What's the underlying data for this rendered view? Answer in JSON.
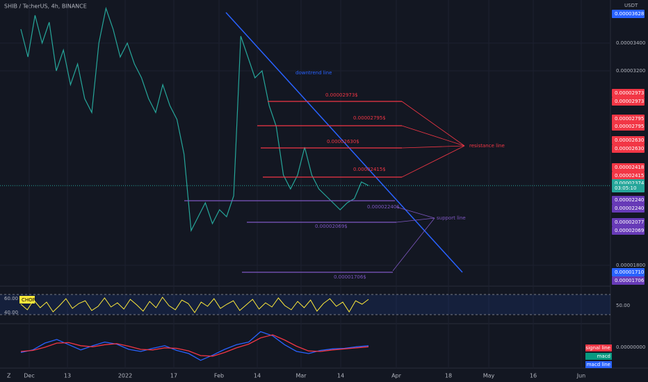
{
  "header": {
    "title": "SHIB / TetherUS, 4h, BINANCE",
    "currency": "USDT"
  },
  "price": {
    "ylim": [
      1.685e-05,
      3.71e-05
    ],
    "values": [
      3.5e-05,
      3.3e-05,
      3.6e-05,
      3.4e-05,
      3.55e-05,
      3.2e-05,
      3.35e-05,
      3.1e-05,
      3.25e-05,
      3e-05,
      2.9e-05,
      3.4e-05,
      3.65e-05,
      3.5e-05,
      3.3e-05,
      3.4e-05,
      3.25e-05,
      3.15e-05,
      3e-05,
      2.9e-05,
      3.1e-05,
      2.95e-05,
      2.85e-05,
      2.6e-05,
      2.05e-05,
      2.15e-05,
      2.25e-05,
      2.1e-05,
      2.2e-05,
      2.15e-05,
      2.3e-05,
      3.45e-05,
      3.3e-05,
      3.15e-05,
      3.2e-05,
      2.95e-05,
      2.8e-05,
      2.45e-05,
      2.35e-05,
      2.45e-05,
      2.65e-05,
      2.45e-05,
      2.35e-05,
      2.3e-05,
      2.25e-05,
      2.2e-05,
      2.25e-05,
      2.28e-05,
      2.4e-05,
      2.374e-05
    ],
    "color": "#26a69a"
  },
  "price_axis": {
    "ticks": [
      "0.00003400",
      "0.00003200",
      "0.00001800"
    ]
  },
  "price_tags": [
    {
      "text": "0.00003628",
      "color": "#2962ff"
    },
    {
      "text": "0.00002973",
      "color": "#f23645"
    },
    {
      "text": "0.00002973",
      "color": "#f23645"
    },
    {
      "text": "0.00002795",
      "color": "#f23645"
    },
    {
      "text": "0.00002795",
      "color": "#f23645"
    },
    {
      "text": "0.00002630",
      "color": "#f23645"
    },
    {
      "text": "0.00002630",
      "color": "#f23645"
    },
    {
      "text": "0.00002418",
      "color": "#f23645"
    },
    {
      "text": "0.00002415",
      "color": "#f23645"
    },
    {
      "text": "0.00002374",
      "color": "#26a69a"
    },
    {
      "text": "03:05:10",
      "color": "#26a69a"
    },
    {
      "text": "0.00002240",
      "color": "#673ab7"
    },
    {
      "text": "0.00002240",
      "color": "#673ab7"
    },
    {
      "text": "0.00002077",
      "color": "#673ab7"
    },
    {
      "text": "0.00002069",
      "color": "#673ab7"
    },
    {
      "text": "0.00001710",
      "color": "#2962ff"
    },
    {
      "text": "0.00001706",
      "color": "#673ab7"
    }
  ],
  "levels": [
    {
      "label": "0.00002973$",
      "color": "#f23645"
    },
    {
      "label": "0.00002795$",
      "color": "#f23645"
    },
    {
      "label": "0.00002630$",
      "color": "#f23645"
    },
    {
      "label": "0.00002415$",
      "color": "#f23645"
    },
    {
      "label": "0.00002240$",
      "color": "#7e57c2"
    },
    {
      "label": "0.00002069$",
      "color": "#7e57c2"
    },
    {
      "label": "0.00001706$",
      "color": "#7e57c2"
    }
  ],
  "annotations": {
    "downtrend": "downtrend line",
    "resistance": "resistance line",
    "support": "support line"
  },
  "chop": {
    "name": "CHOP",
    "ticks": [
      "60.00",
      "40.00"
    ],
    "right_label": "50.00",
    "ylim": [
      30,
      70
    ],
    "values": [
      52,
      44,
      58,
      47,
      55,
      41,
      50,
      60,
      46,
      53,
      57,
      43,
      49,
      61,
      48,
      54,
      45,
      59,
      51,
      42,
      56,
      47,
      62,
      50,
      44,
      58,
      53,
      40,
      55,
      49,
      60,
      46,
      52,
      57,
      43,
      51,
      59,
      45,
      54,
      48,
      61,
      50,
      44,
      56,
      47,
      58,
      42,
      53,
      60,
      49,
      55,
      41,
      57,
      52,
      59
    ]
  },
  "macd": {
    "zero_label": "0.00000000",
    "ylim": [
      -4e-07,
      4e-07
    ],
    "macd": [
      -1e-07,
      -5e-08,
      8e-08,
      1.5e-07,
      5e-08,
      -5e-08,
      3e-08,
      1e-07,
      6e-08,
      -4e-08,
      -8e-08,
      -2e-08,
      3e-08,
      -6e-08,
      -1.2e-07,
      -2.5e-07,
      -1.5e-07,
      -4e-08,
      5e-08,
      1e-07,
      3e-07,
      2.2e-07,
      5e-08,
      -8e-08,
      -1.2e-07,
      -6e-08,
      -3e-08,
      -2e-08,
      1e-08,
      3e-08
    ],
    "signal": [
      -8e-08,
      -6e-08,
      0,
      8e-08,
      9e-08,
      3e-08,
      1e-08,
      5e-08,
      7e-08,
      2e-08,
      -4e-08,
      -5e-08,
      -1e-08,
      -2e-08,
      -7e-08,
      -1.6e-07,
      -1.7e-07,
      -1e-07,
      -1e-08,
      6e-08,
      1.8e-07,
      2.4e-07,
      1.4e-07,
      2e-08,
      -7e-08,
      -8e-08,
      -5e-08,
      -3e-08,
      -1e-08,
      1e-08
    ],
    "legend": [
      {
        "text": "signal line",
        "color": "#f23645"
      },
      {
        "text": "macd",
        "color": "#089981"
      },
      {
        "text": "macd line",
        "color": "#2962ff"
      }
    ]
  },
  "dates": [
    "Dec",
    "13",
    "2022",
    "17",
    "Feb",
    "14",
    "Mar",
    "14",
    "Apr",
    "18",
    "May",
    "16",
    "Jun"
  ],
  "footer": {
    "left": "Z"
  }
}
